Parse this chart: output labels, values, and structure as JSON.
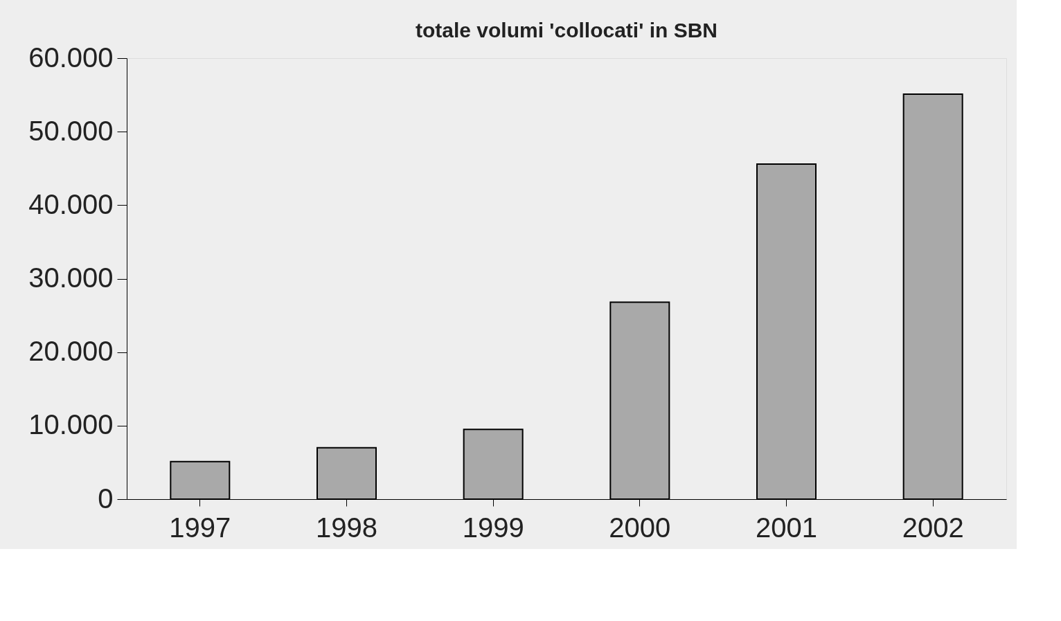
{
  "chart_data": {
    "type": "bar",
    "title": "totale volumi 'collocati' in SBN",
    "categories": [
      "1997",
      "1998",
      "1999",
      "2000",
      "2001",
      "2002"
    ],
    "values": [
      5100,
      7000,
      9500,
      26800,
      45600,
      55100
    ],
    "color": "#a9a9a9",
    "ylim": [
      0,
      60000
    ],
    "yticks": [
      0,
      {
        "value": 10000,
        "label": "10.000"
      },
      {
        "value": 20000,
        "label": "20.000"
      },
      {
        "value": 30000,
        "label": "30.000"
      },
      {
        "value": 40000,
        "label": "40.000"
      },
      {
        "value": 50000,
        "label": "50.000"
      },
      {
        "value": 60000,
        "label": "60.000"
      }
    ],
    "grid": false
  }
}
